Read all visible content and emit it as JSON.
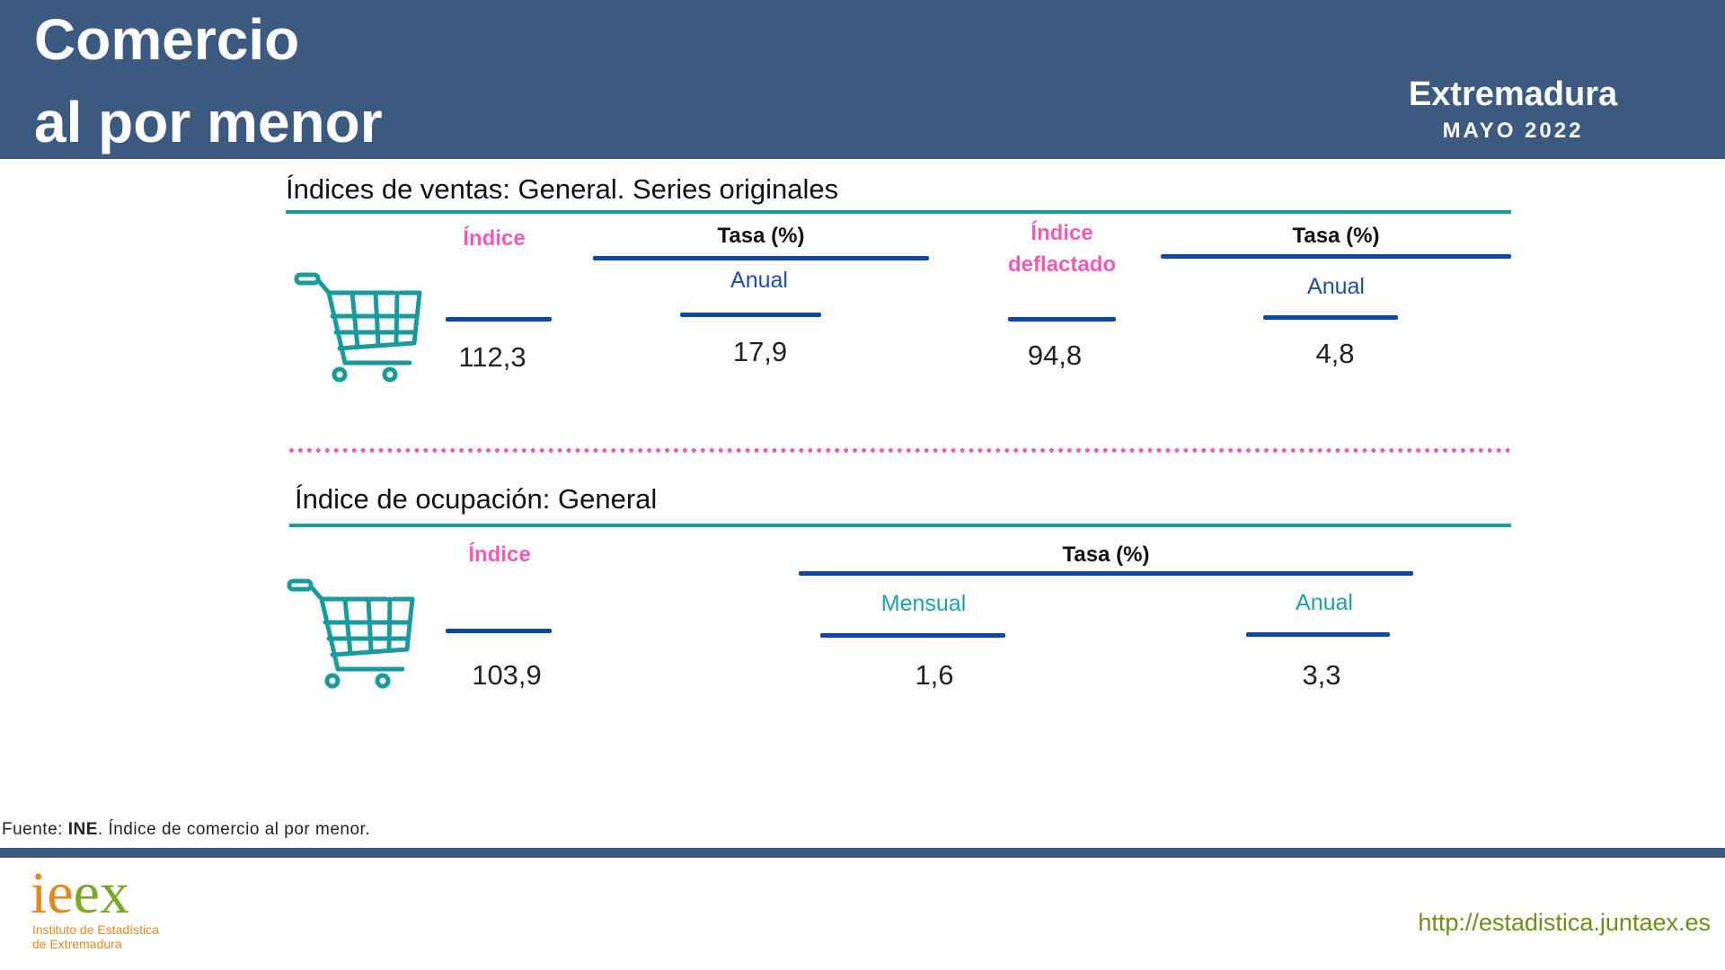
{
  "header": {
    "title_line1": "Comercio",
    "title_line2": "al por menor",
    "region": "Extremadura",
    "period": "MAYO 2022"
  },
  "section1": {
    "title": "Índices de ventas: General. Series originales",
    "indice_label": "Índice",
    "indice_value": "112,3",
    "tasa1_label": "Tasa (%)",
    "tasa1_sub": "Anual",
    "tasa1_value": "17,9",
    "deflactado_line1": "Índice",
    "deflactado_line2": "deflactado",
    "deflactado_value": "94,8",
    "tasa2_label": "Tasa (%)",
    "tasa2_sub": "Anual",
    "tasa2_value": "4,8"
  },
  "section2": {
    "title": "Índice de ocupación: General",
    "indice_label": "Índice",
    "indice_value": "103,9",
    "tasa_label": "Tasa (%)",
    "mensual_label": "Mensual",
    "mensual_value": "1,6",
    "anual_label": "Anual",
    "anual_value": "3,3"
  },
  "footer": {
    "source_prefix": "Fuente: ",
    "source_org": "INE",
    "source_rest": ". Índice de comercio al por menor.",
    "url": "http://estadistica.juntaex.es",
    "logo_i": "i",
    "logo_e1": "e",
    "logo_e2": "e",
    "logo_x": "x",
    "logo_line1": "Instituto de Estadística",
    "logo_line2": "de Extremadura"
  },
  "colors": {
    "header_bg": "#3c5a80",
    "accent_pink": "#f15bb5",
    "accent_teal": "#199a9d",
    "rule_blue": "#0d47a1",
    "url_green": "#6a8f1a",
    "logo_orange": "#e08a1e",
    "logo_green": "#7aa62a"
  },
  "icons": [
    "shopping-cart-icon"
  ]
}
